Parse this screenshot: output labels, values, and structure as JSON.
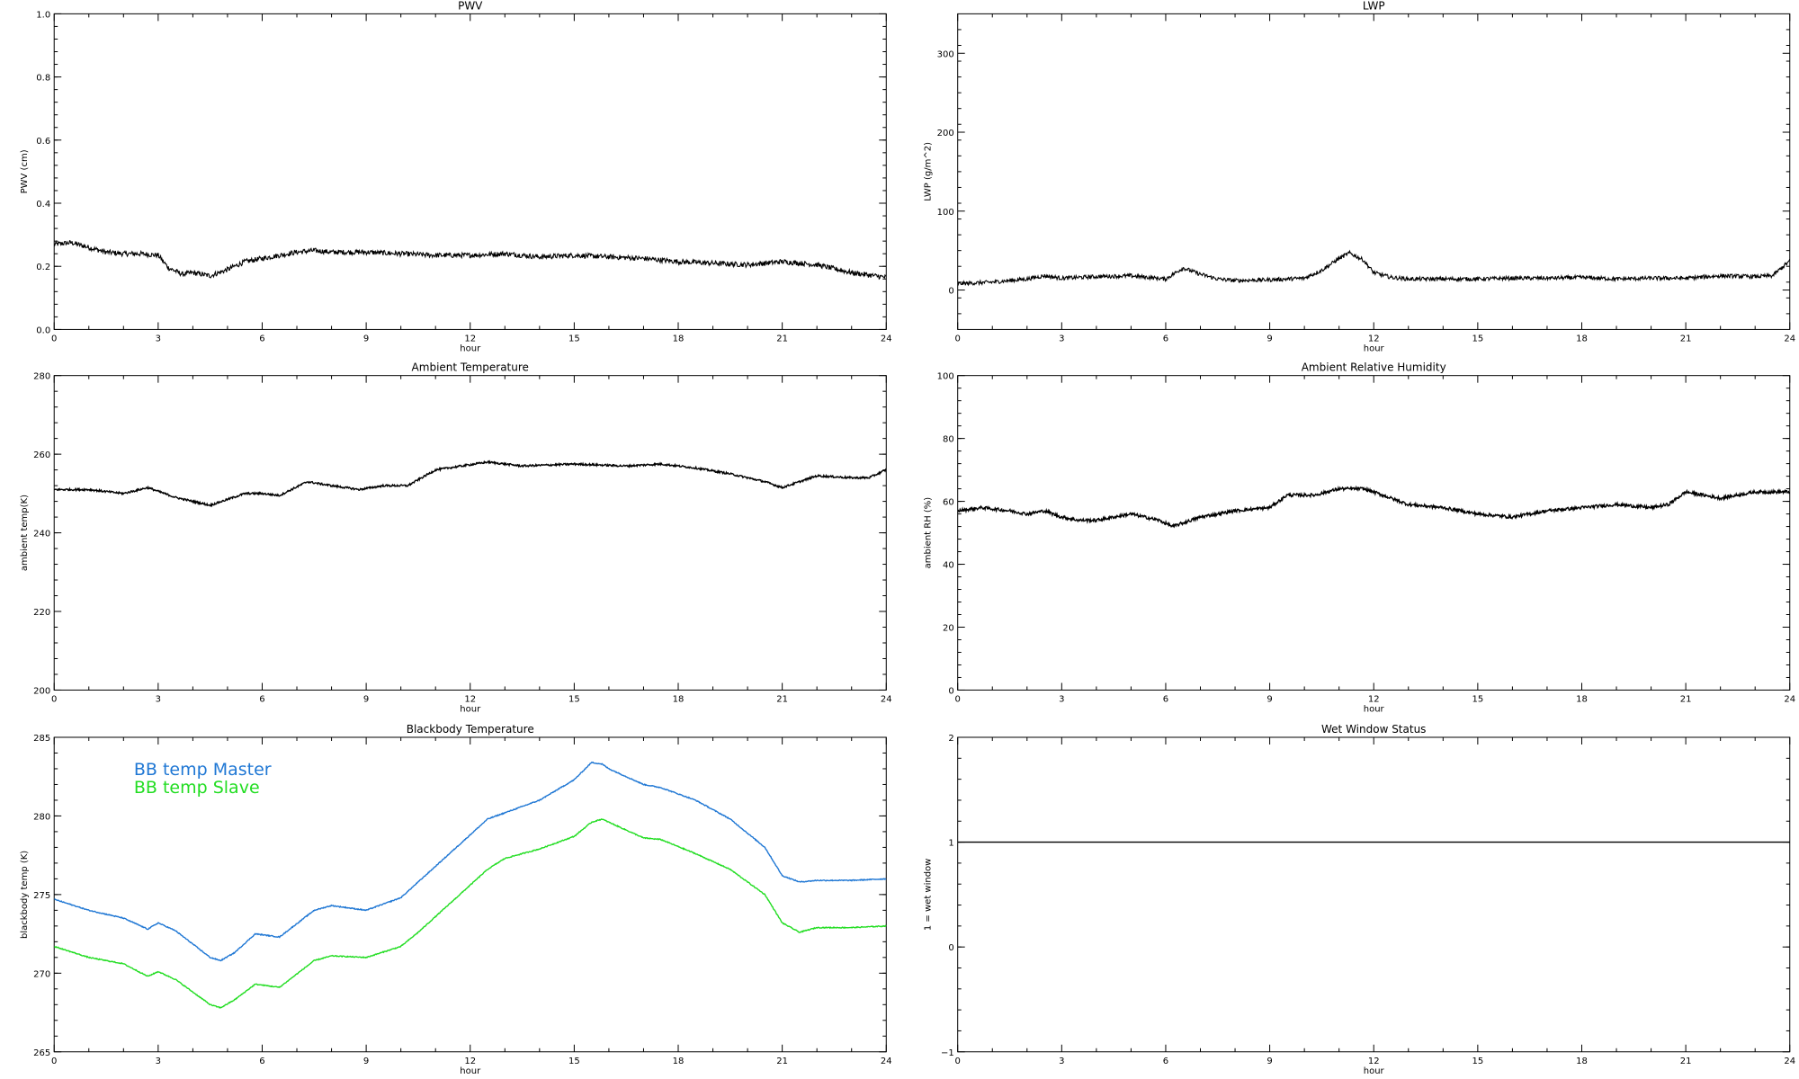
{
  "chart_data": [
    {
      "type": "line",
      "title": "PWV",
      "xlabel": "hour",
      "ylabel": "PWV (cm)",
      "xlim": [
        0,
        24
      ],
      "ylim": [
        0.0,
        1.0
      ],
      "xticks": [
        "0",
        "3",
        "6",
        "9",
        "12",
        "15",
        "18",
        "21",
        "24"
      ],
      "yticks": [
        "0.0",
        "0.2",
        "0.4",
        "0.6",
        "0.8",
        "1.0"
      ],
      "noise": 0.008,
      "series": [
        {
          "color": "#000000",
          "x": [
            0,
            0.5,
            1,
            1.5,
            2,
            2.5,
            3,
            3.3,
            3.7,
            4,
            4.5,
            5,
            5.5,
            6,
            6.5,
            7,
            7.5,
            8,
            9,
            10,
            11,
            12,
            13,
            14,
            15,
            16,
            17,
            18,
            19,
            20,
            21,
            22,
            23,
            24
          ],
          "y": [
            0.27,
            0.275,
            0.26,
            0.245,
            0.24,
            0.24,
            0.235,
            0.195,
            0.175,
            0.18,
            0.17,
            0.19,
            0.215,
            0.225,
            0.235,
            0.245,
            0.25,
            0.245,
            0.245,
            0.24,
            0.235,
            0.235,
            0.24,
            0.23,
            0.235,
            0.23,
            0.225,
            0.215,
            0.21,
            0.205,
            0.215,
            0.205,
            0.18,
            0.165
          ]
        }
      ]
    },
    {
      "type": "line",
      "title": "LWP",
      "xlabel": "hour",
      "ylabel": "LWP (g/m^2)",
      "xlim": [
        0,
        24
      ],
      "ylim": [
        -50,
        350
      ],
      "xticks": [
        "0",
        "3",
        "6",
        "9",
        "12",
        "15",
        "18",
        "21",
        "24"
      ],
      "yticks": [
        "0",
        "100",
        "200",
        "300"
      ],
      "noise": 2.5,
      "series": [
        {
          "color": "#000000",
          "x": [
            0,
            1,
            2,
            2.5,
            3,
            4,
            5,
            6,
            6.5,
            7,
            7.5,
            8,
            9,
            10,
            10.5,
            11,
            11.3,
            11.7,
            12,
            12.5,
            13,
            14,
            15,
            16,
            17,
            18,
            19,
            20,
            21,
            22,
            23,
            23.5,
            24
          ],
          "y": [
            8,
            10,
            14,
            18,
            15,
            17,
            18,
            14,
            28,
            20,
            14,
            12,
            13,
            15,
            25,
            40,
            47,
            38,
            22,
            16,
            14,
            14,
            14,
            15,
            15,
            16,
            14,
            15,
            15,
            18,
            17,
            18,
            37
          ]
        }
      ]
    },
    {
      "type": "line",
      "title": "Ambient Temperature",
      "xlabel": "hour",
      "ylabel": "ambient temp(K)",
      "xlim": [
        0,
        24
      ],
      "ylim": [
        200,
        280
      ],
      "xticks": [
        "0",
        "3",
        "6",
        "9",
        "12",
        "15",
        "18",
        "21",
        "24"
      ],
      "yticks": [
        "200",
        "220",
        "240",
        "260",
        "280"
      ],
      "noise": 0.25,
      "series": [
        {
          "color": "#000000",
          "x": [
            0,
            1,
            2,
            2.7,
            3.5,
            4.5,
            5.5,
            6,
            6.5,
            7.3,
            8,
            8.8,
            9.5,
            10.2,
            11,
            12.5,
            13.5,
            15,
            16.5,
            17.5,
            18.5,
            19.5,
            20.5,
            21,
            21.5,
            22,
            23,
            23.5,
            24
          ],
          "y": [
            251,
            251,
            250,
            251.5,
            249,
            247,
            250,
            250,
            249.5,
            253,
            252,
            251,
            252,
            252,
            256,
            258,
            257,
            257.5,
            257,
            257.5,
            256.5,
            255,
            253,
            251.5,
            253,
            254.5,
            254,
            254,
            256
          ]
        }
      ]
    },
    {
      "type": "line",
      "title": "Ambient Relative Humidity",
      "xlabel": "hour",
      "ylabel": "ambient RH (%)",
      "xlim": [
        0,
        24
      ],
      "ylim": [
        0,
        100
      ],
      "xticks": [
        "0",
        "3",
        "6",
        "9",
        "12",
        "15",
        "18",
        "21",
        "24"
      ],
      "yticks": [
        "0",
        "20",
        "40",
        "60",
        "80",
        "100"
      ],
      "noise": 0.5,
      "series": [
        {
          "color": "#000000",
          "x": [
            0,
            0.7,
            1.5,
            2,
            2.5,
            3,
            3.5,
            4,
            5,
            5.8,
            6.2,
            7,
            8,
            9,
            9.5,
            10.3,
            11,
            11.7,
            12,
            12.5,
            13,
            14,
            15,
            16,
            17,
            18,
            19,
            20,
            20.5,
            21,
            22,
            23,
            24
          ],
          "y": [
            57,
            58,
            57,
            56,
            57,
            55,
            54,
            54,
            56,
            54,
            52,
            55,
            57,
            58,
            62,
            62,
            64,
            64,
            63,
            61,
            59,
            58,
            56,
            55,
            57,
            58,
            59,
            58,
            59,
            63,
            61,
            63,
            63
          ]
        }
      ]
    },
    {
      "type": "line",
      "title": "Blackbody Temperature",
      "xlabel": "hour",
      "ylabel": "blackbody temp (K)",
      "xlim": [
        0,
        24
      ],
      "ylim": [
        265,
        285
      ],
      "xticks": [
        "0",
        "3",
        "6",
        "9",
        "12",
        "15",
        "18",
        "21",
        "24"
      ],
      "yticks": [
        "265",
        "270",
        "275",
        "280",
        "285"
      ],
      "noise": 0.03,
      "series": [
        {
          "name": "BB temp Master",
          "color": "#1f77d4",
          "x": [
            0,
            1,
            2,
            2.7,
            3,
            3.5,
            4.5,
            4.8,
            5.2,
            5.8,
            6.5,
            7.5,
            8,
            9,
            10,
            10.5,
            11.5,
            12.5,
            13,
            14,
            15,
            15.5,
            15.8,
            16,
            16.5,
            17,
            17.5,
            18.5,
            19.5,
            20.5,
            21,
            21.5,
            22,
            23,
            24
          ],
          "y": [
            274.7,
            274,
            273.5,
            272.8,
            273.2,
            272.7,
            271,
            270.8,
            271.3,
            272.5,
            272.3,
            274,
            274.3,
            274,
            274.8,
            275.8,
            277.8,
            279.8,
            280.2,
            281,
            282.3,
            283.4,
            283.3,
            283,
            282.5,
            282,
            281.8,
            281,
            279.8,
            278,
            276.2,
            275.8,
            275.9,
            275.9,
            276
          ]
        },
        {
          "name": "BB temp Slave",
          "color": "#22dd22",
          "x": [
            0,
            1,
            2,
            2.7,
            3,
            3.5,
            4.5,
            4.8,
            5.2,
            5.8,
            6.5,
            7.5,
            8,
            9,
            10,
            10.5,
            11.5,
            12.5,
            13,
            14,
            15,
            15.5,
            15.8,
            16,
            16.5,
            17,
            17.5,
            18.5,
            19.5,
            20.5,
            21,
            21.5,
            22,
            23,
            24
          ],
          "y": [
            271.7,
            271,
            270.6,
            269.8,
            270.1,
            269.6,
            268,
            267.8,
            268.3,
            269.3,
            269.1,
            270.8,
            271.1,
            271,
            271.7,
            272.6,
            274.6,
            276.6,
            277.3,
            277.9,
            278.7,
            279.6,
            279.8,
            279.6,
            279.1,
            278.6,
            278.5,
            277.6,
            276.6,
            275,
            273.2,
            272.6,
            272.9,
            272.9,
            273
          ]
        }
      ],
      "legend_position": "top-left"
    },
    {
      "type": "line",
      "title": "Wet Window Status",
      "xlabel": "hour",
      "ylabel": "1 = wet window",
      "xlim": [
        0,
        24
      ],
      "ylim": [
        -1,
        2
      ],
      "xticks": [
        "0",
        "3",
        "6",
        "9",
        "12",
        "15",
        "18",
        "21",
        "24"
      ],
      "yticks": [
        "-1",
        "0",
        "1",
        "2"
      ],
      "noise": 0,
      "series": [
        {
          "color": "#000000",
          "x": [
            0,
            24
          ],
          "y": [
            1,
            1
          ]
        }
      ]
    }
  ]
}
